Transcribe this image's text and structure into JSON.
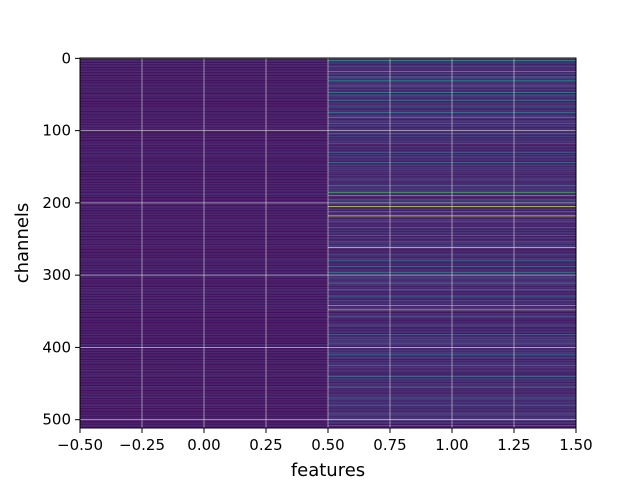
{
  "chart_data": {
    "type": "heatmap",
    "title": "",
    "xlabel": "features",
    "ylabel": "channels",
    "xlim": [
      -0.5,
      1.5
    ],
    "ylim": [
      511.5,
      -0.5
    ],
    "y_inverted": true,
    "grid": true,
    "colormap": "viridis",
    "columns": [
      0,
      1
    ],
    "n_rows": 512,
    "x_ticks": [
      -0.5,
      -0.25,
      0.0,
      0.25,
      0.5,
      0.75,
      1.0,
      1.25,
      1.5
    ],
    "x_tick_labels": [
      "−0.50",
      "−0.25",
      "0.00",
      "0.25",
      "0.50",
      "0.75",
      "1.00",
      "1.25",
      "1.50"
    ],
    "y_ticks": [
      0,
      100,
      200,
      300,
      400,
      500
    ],
    "y_tick_labels": [
      "0",
      "100",
      "200",
      "300",
      "400",
      "500"
    ],
    "column_0_baseline": 0.04,
    "column_0_highlights": [
      {
        "row": 52,
        "value": 0.12
      },
      {
        "row": 96,
        "value": 0.11
      },
      {
        "row": 134,
        "value": 0.14
      },
      {
        "row": 188,
        "value": 0.12
      },
      {
        "row": 201,
        "value": 0.11
      },
      {
        "row": 262,
        "value": 0.13
      },
      {
        "row": 279,
        "value": 0.14
      },
      {
        "row": 299,
        "value": 0.12
      },
      {
        "row": 340,
        "value": 0.11
      },
      {
        "row": 396,
        "value": 0.13
      },
      {
        "row": 455,
        "value": 0.12
      },
      {
        "row": 480,
        "value": 0.11
      }
    ],
    "column_1_baseline": 0.06,
    "column_1_highlights": [
      {
        "row": 3,
        "value": 0.45
      },
      {
        "row": 12,
        "value": 0.3
      },
      {
        "row": 18,
        "value": 0.55
      },
      {
        "row": 26,
        "value": 0.4
      },
      {
        "row": 31,
        "value": 0.5
      },
      {
        "row": 38,
        "value": 0.35
      },
      {
        "row": 47,
        "value": 0.5
      },
      {
        "row": 52,
        "value": 0.3
      },
      {
        "row": 58,
        "value": 0.4
      },
      {
        "row": 66,
        "value": 0.3
      },
      {
        "row": 75,
        "value": 0.35
      },
      {
        "row": 82,
        "value": 0.45
      },
      {
        "row": 90,
        "value": 0.3
      },
      {
        "row": 104,
        "value": 0.28
      },
      {
        "row": 118,
        "value": 0.25
      },
      {
        "row": 130,
        "value": 0.3
      },
      {
        "row": 144,
        "value": 0.35
      },
      {
        "row": 157,
        "value": 0.25
      },
      {
        "row": 168,
        "value": 0.3
      },
      {
        "row": 176,
        "value": 0.35
      },
      {
        "row": 186,
        "value": 0.7
      },
      {
        "row": 190,
        "value": 0.65
      },
      {
        "row": 196,
        "value": 0.3
      },
      {
        "row": 205,
        "value": 0.9
      },
      {
        "row": 212,
        "value": 0.35
      },
      {
        "row": 218,
        "value": 1.0
      },
      {
        "row": 226,
        "value": 0.3
      },
      {
        "row": 234,
        "value": 0.28
      },
      {
        "row": 245,
        "value": 0.3
      },
      {
        "row": 254,
        "value": 0.35
      },
      {
        "row": 262,
        "value": 1.0
      },
      {
        "row": 272,
        "value": 0.3
      },
      {
        "row": 280,
        "value": 0.35
      },
      {
        "row": 288,
        "value": 0.3
      },
      {
        "row": 296,
        "value": 0.4
      },
      {
        "row": 304,
        "value": 0.3
      },
      {
        "row": 311,
        "value": 0.45
      },
      {
        "row": 320,
        "value": 0.3
      },
      {
        "row": 330,
        "value": 0.3
      },
      {
        "row": 342,
        "value": 0.7
      },
      {
        "row": 348,
        "value": 0.85
      },
      {
        "row": 358,
        "value": 0.3
      },
      {
        "row": 370,
        "value": 0.3
      },
      {
        "row": 382,
        "value": 0.28
      },
      {
        "row": 395,
        "value": 0.35
      },
      {
        "row": 410,
        "value": 0.3
      },
      {
        "row": 425,
        "value": 0.3
      },
      {
        "row": 440,
        "value": 0.35
      },
      {
        "row": 455,
        "value": 0.4
      },
      {
        "row": 470,
        "value": 0.3
      },
      {
        "row": 480,
        "value": 0.35
      },
      {
        "row": 492,
        "value": 0.3
      },
      {
        "row": 500,
        "value": 0.45
      },
      {
        "row": 508,
        "value": 0.3
      }
    ]
  }
}
